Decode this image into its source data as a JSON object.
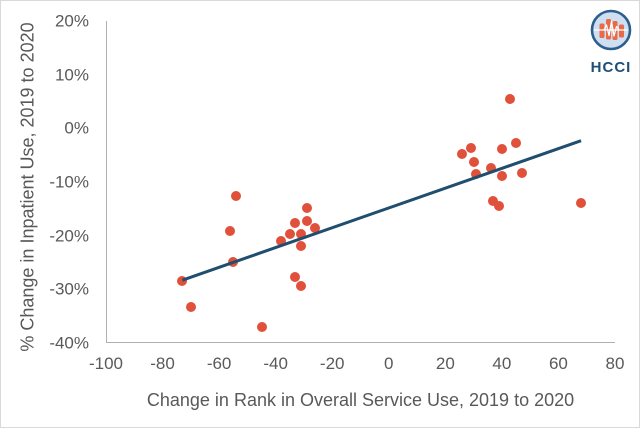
{
  "logo": {
    "text": "HCCI",
    "circle_fill": "#cddff0",
    "circle_border": "#2d5f8e",
    "bar_color": "#ea6a47",
    "text_color": "#1f4e79"
  },
  "chart_data": {
    "type": "scatter",
    "title": "",
    "xlabel": "Change in Rank in Overall Service Use, 2019 to 2020",
    "ylabel": "% Change in Inpatient Use, 2019 to 2020",
    "xlim": [
      -100,
      80
    ],
    "ylim": [
      -40,
      20
    ],
    "grid": false,
    "legend": "none",
    "point_color": "#e0503a",
    "axis_line_color": "#b0b0b0",
    "text_color": "#595959",
    "x_ticks": [
      {
        "v": -100,
        "label": "-100"
      },
      {
        "v": -80,
        "label": "-80"
      },
      {
        "v": -60,
        "label": "-60"
      },
      {
        "v": -40,
        "label": "-40"
      },
      {
        "v": -20,
        "label": "-20"
      },
      {
        "v": 0,
        "label": "0"
      },
      {
        "v": 20,
        "label": "20"
      },
      {
        "v": 40,
        "label": "40"
      },
      {
        "v": 60,
        "label": "60"
      },
      {
        "v": 80,
        "label": "80"
      }
    ],
    "y_ticks": [
      {
        "v": 20,
        "label": "20%"
      },
      {
        "v": 10,
        "label": "10%"
      },
      {
        "v": 0,
        "label": "0%"
      },
      {
        "v": -10,
        "label": "-10%"
      },
      {
        "v": -20,
        "label": "-20%"
      },
      {
        "v": -30,
        "label": "-30%"
      },
      {
        "v": -40,
        "label": "-40%"
      }
    ],
    "points": [
      {
        "x": -73,
        "y": -28.5
      },
      {
        "x": -70,
        "y": -33.2
      },
      {
        "x": -56,
        "y": -19.1
      },
      {
        "x": -55,
        "y": -24.9
      },
      {
        "x": -54,
        "y": -12.7
      },
      {
        "x": -45,
        "y": -37.0
      },
      {
        "x": -38,
        "y": -21.0
      },
      {
        "x": -35,
        "y": -19.7
      },
      {
        "x": -33,
        "y": -17.7
      },
      {
        "x": -33,
        "y": -27.7
      },
      {
        "x": -31,
        "y": -19.6
      },
      {
        "x": -31,
        "y": -22.0
      },
      {
        "x": -31,
        "y": -29.4
      },
      {
        "x": -29,
        "y": -14.9
      },
      {
        "x": -29,
        "y": -17.3
      },
      {
        "x": -26,
        "y": -18.6
      },
      {
        "x": 26,
        "y": -4.8
      },
      {
        "x": 29,
        "y": -3.7
      },
      {
        "x": 30,
        "y": -6.3
      },
      {
        "x": 31,
        "y": -8.6
      },
      {
        "x": 36,
        "y": -7.4
      },
      {
        "x": 37,
        "y": -13.6
      },
      {
        "x": 39,
        "y": -14.5
      },
      {
        "x": 40,
        "y": -3.9
      },
      {
        "x": 40,
        "y": -8.8
      },
      {
        "x": 43,
        "y": 5.5
      },
      {
        "x": 45,
        "y": -2.8
      },
      {
        "x": 47,
        "y": -8.4
      },
      {
        "x": 68,
        "y": -13.9
      }
    ],
    "trendline": {
      "x1": -73,
      "y1": -28.3,
      "x2": 68,
      "y2": -2.3,
      "color": "#1f4e6e",
      "width": 3
    }
  }
}
